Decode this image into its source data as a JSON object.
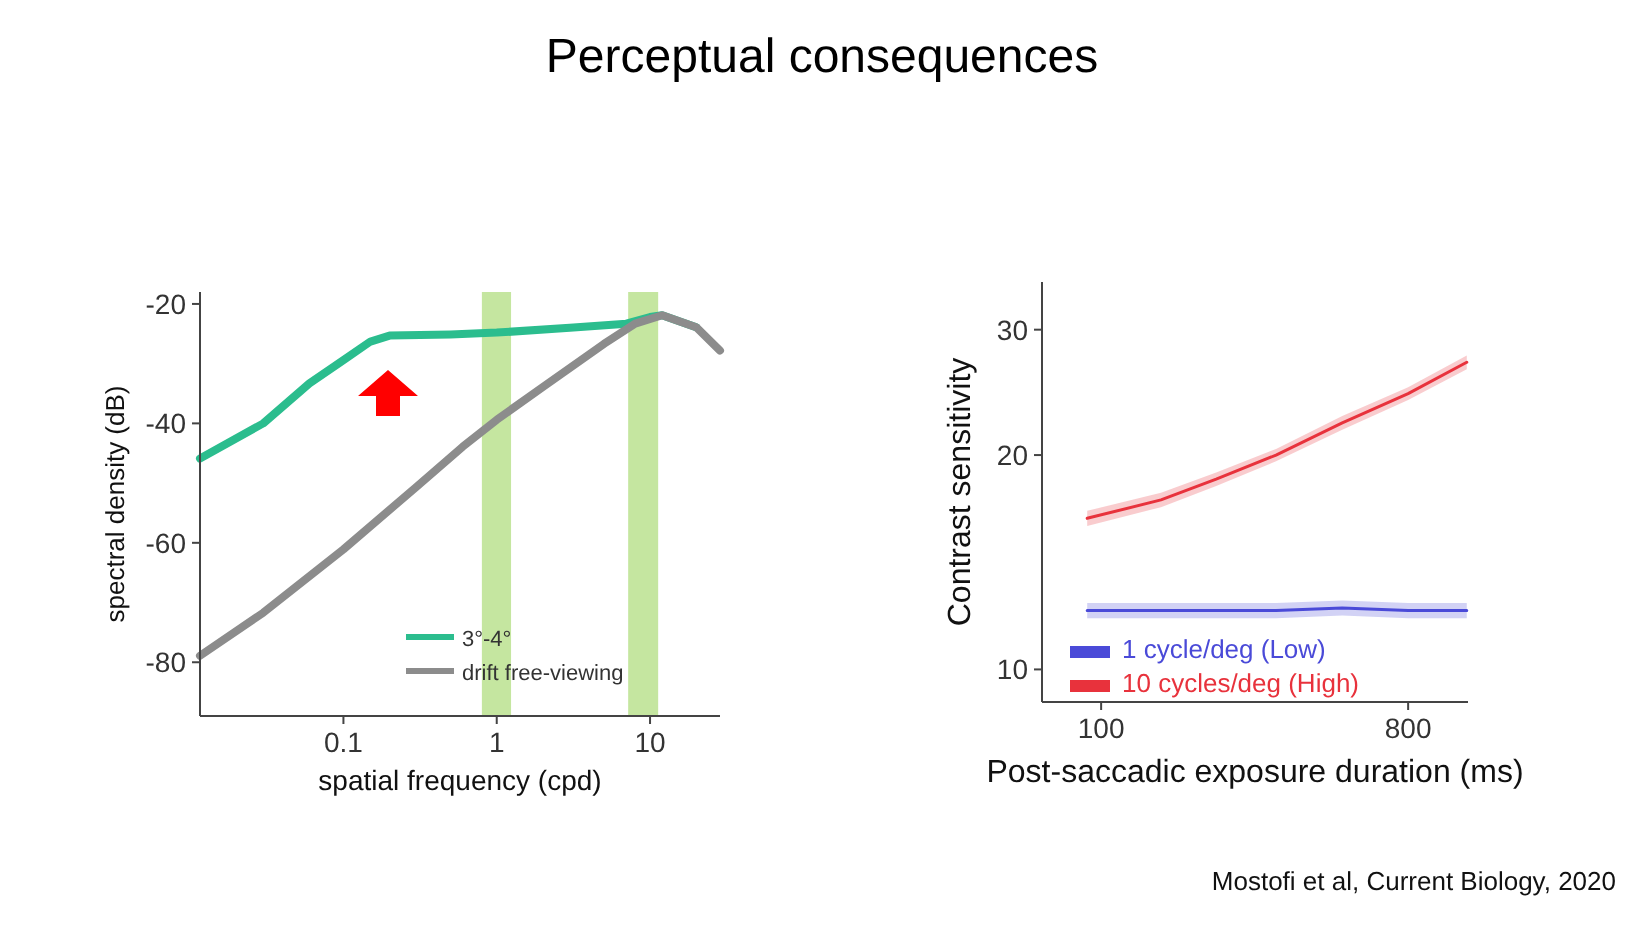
{
  "chart_data": [
    {
      "type": "line",
      "title": "Perceptual consequences",
      "xlabel": "spatial frequency (cpd)",
      "ylabel": "spectral density (dB)",
      "log": "x",
      "xlim": [
        0.0116,
        28.6
      ],
      "ylim": [
        -89,
        -18
      ],
      "xticks": [
        0.1,
        1,
        10
      ],
      "yticks": [
        -20,
        -40,
        -60,
        -80
      ],
      "grid": false,
      "legend": "bottom",
      "line_style": "solid",
      "marker": "none",
      "bands": [
        {
          "axis": "x",
          "from": 0.8,
          "to": 1.24,
          "color": "#c5e6a0"
        },
        {
          "axis": "x",
          "from": 7.2,
          "to": 11.3,
          "color": "#c5e6a0"
        }
      ],
      "series": [
        {
          "name": "3°-4°",
          "color": "#2bbd8e",
          "x": [
            0.0116,
            0.03,
            0.06,
            0.1,
            0.15,
            0.2,
            0.5,
            1,
            3,
            7,
            10,
            12,
            20
          ],
          "values": [
            -45.9,
            -40,
            -33.3,
            -29.4,
            -26.3,
            -25.3,
            -25.1,
            -24.8,
            -24,
            -23.3,
            -22.2,
            -21.9,
            -23.9
          ]
        },
        {
          "name": "drift free-viewing",
          "color": "#8c8c8c",
          "x": [
            0.0116,
            0.03,
            0.1,
            0.3,
            0.6,
            1,
            2,
            5,
            8,
            12,
            20,
            28.6
          ],
          "values": [
            -78.9,
            -71.7,
            -61.1,
            -50.6,
            -43.9,
            -39.4,
            -33.9,
            -26.7,
            -23.3,
            -21.9,
            -23.9,
            -27.8
          ]
        }
      ]
    },
    {
      "type": "line",
      "xlabel": "Post-saccadic exposure duration (ms)",
      "ylabel": "Contrast sensitivity",
      "log": "xy",
      "xlim": [
        67,
        1200
      ],
      "ylim": [
        9,
        35
      ],
      "xticks": [
        100,
        800
      ],
      "yticks": [
        10,
        20,
        30
      ],
      "grid": false,
      "legend": "bottom left",
      "line_style": "solid",
      "marker": "none",
      "annotations": [
        "Mostofi et al,  Current Biology, 2020"
      ],
      "series": [
        {
          "name": "1 cycle/deg (Low)",
          "color": "#4a4ad8",
          "x": [
            91,
            150,
            218,
            327,
            512,
            800,
            1190
          ],
          "values": [
            12.1,
            12.1,
            12.1,
            12.1,
            12.2,
            12.1,
            12.1
          ],
          "lower": [
            11.8,
            11.8,
            11.8,
            11.8,
            11.9,
            11.8,
            11.8
          ],
          "upper": [
            12.4,
            12.4,
            12.4,
            12.4,
            12.5,
            12.4,
            12.4
          ]
        },
        {
          "name": "10 cycles/deg (High)",
          "color": "#e8323c",
          "x": [
            91,
            150,
            218,
            327,
            512,
            800,
            1190
          ],
          "values": [
            16.3,
            17.3,
            18.5,
            20,
            22.2,
            24.4,
            27
          ],
          "lower": [
            15.9,
            16.9,
            18.1,
            19.6,
            21.7,
            23.9,
            26.4
          ],
          "upper": [
            16.7,
            17.7,
            18.9,
            20.4,
            22.7,
            24.9,
            27.6
          ]
        }
      ]
    }
  ]
}
